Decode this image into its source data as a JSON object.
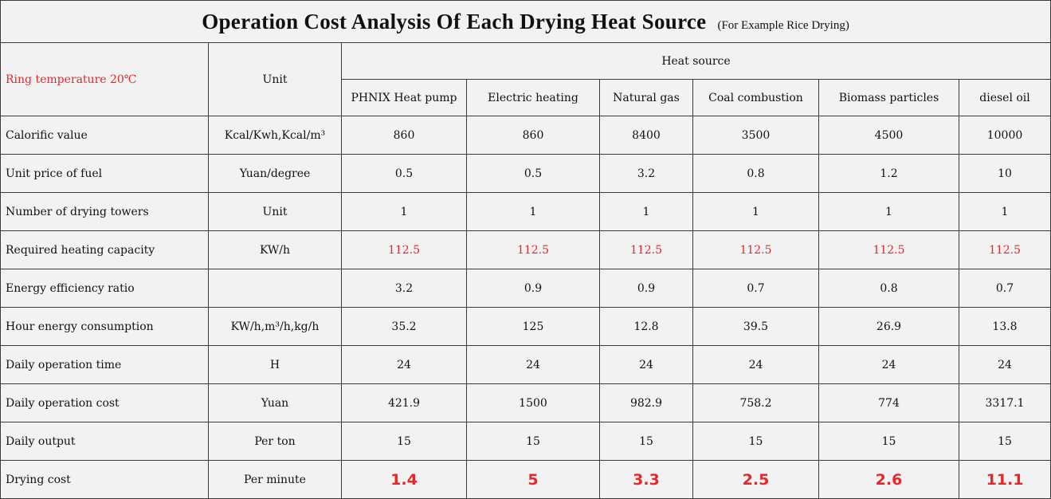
{
  "title": {
    "main": "Operation  Cost  Analysis Of  Each  Drying  Heat  Source",
    "sub": "(For Example Rice Drying)"
  },
  "header": {
    "ring_temperature": "Ring temperature 20℃",
    "unit": "Unit",
    "heat_source": "Heat source",
    "sources": [
      "PHNIX Heat pump",
      "Electric heating",
      "Natural gas",
      "Coal combustion",
      "Biomass particles",
      "diesel oil"
    ]
  },
  "rows": [
    {
      "label": "Calorific value",
      "unit": "Kcal/Kwh,Kcal/m³",
      "values": [
        "860",
        "860",
        "8400",
        "3500",
        "4500",
        "10000"
      ]
    },
    {
      "label": "Unit price of fuel",
      "unit": "Yuan/degree",
      "values": [
        "0.5",
        "0.5",
        "3.2",
        "0.8",
        "1.2",
        "10"
      ]
    },
    {
      "label": "Number of drying towers",
      "unit": "Unit",
      "values": [
        "1",
        "1",
        "1",
        "1",
        "1",
        "1"
      ]
    },
    {
      "label": "Required heating capacity",
      "unit": "KW/h",
      "values": [
        "112.5",
        "112.5",
        "112.5",
        "112.5",
        "112.5",
        "112.5"
      ]
    },
    {
      "label": "Energy efficiency ratio",
      "unit": "",
      "values": [
        "3.2",
        "0.9",
        "0.9",
        "0.7",
        "0.8",
        "0.7"
      ]
    },
    {
      "label": "Hour energy consumption",
      "unit": "KW/h,m³/h,kg/h",
      "values": [
        "35.2",
        "125",
        "12.8",
        "39.5",
        "26.9",
        "13.8"
      ]
    },
    {
      "label": "Daily operation time",
      "unit": "H",
      "values": [
        "24",
        "24",
        "24",
        "24",
        "24",
        "24"
      ]
    },
    {
      "label": "Daily operation cost",
      "unit": "Yuan",
      "values": [
        "421.9",
        "1500",
        "982.9",
        "758.2",
        "774",
        "3317.1"
      ]
    },
    {
      "label": "Daily output",
      "unit": "Per ton",
      "values": [
        "15",
        "15",
        "15",
        "15",
        "15",
        "15"
      ]
    },
    {
      "label": "Drying cost",
      "unit": "Per minute",
      "values": [
        "1.4",
        "5",
        "3.3",
        "2.5",
        "2.6",
        "11.1"
      ]
    }
  ],
  "colors": {
    "highlight": "#e8262c",
    "background": "#f2f2f2",
    "grid": "#3a3a3a"
  }
}
